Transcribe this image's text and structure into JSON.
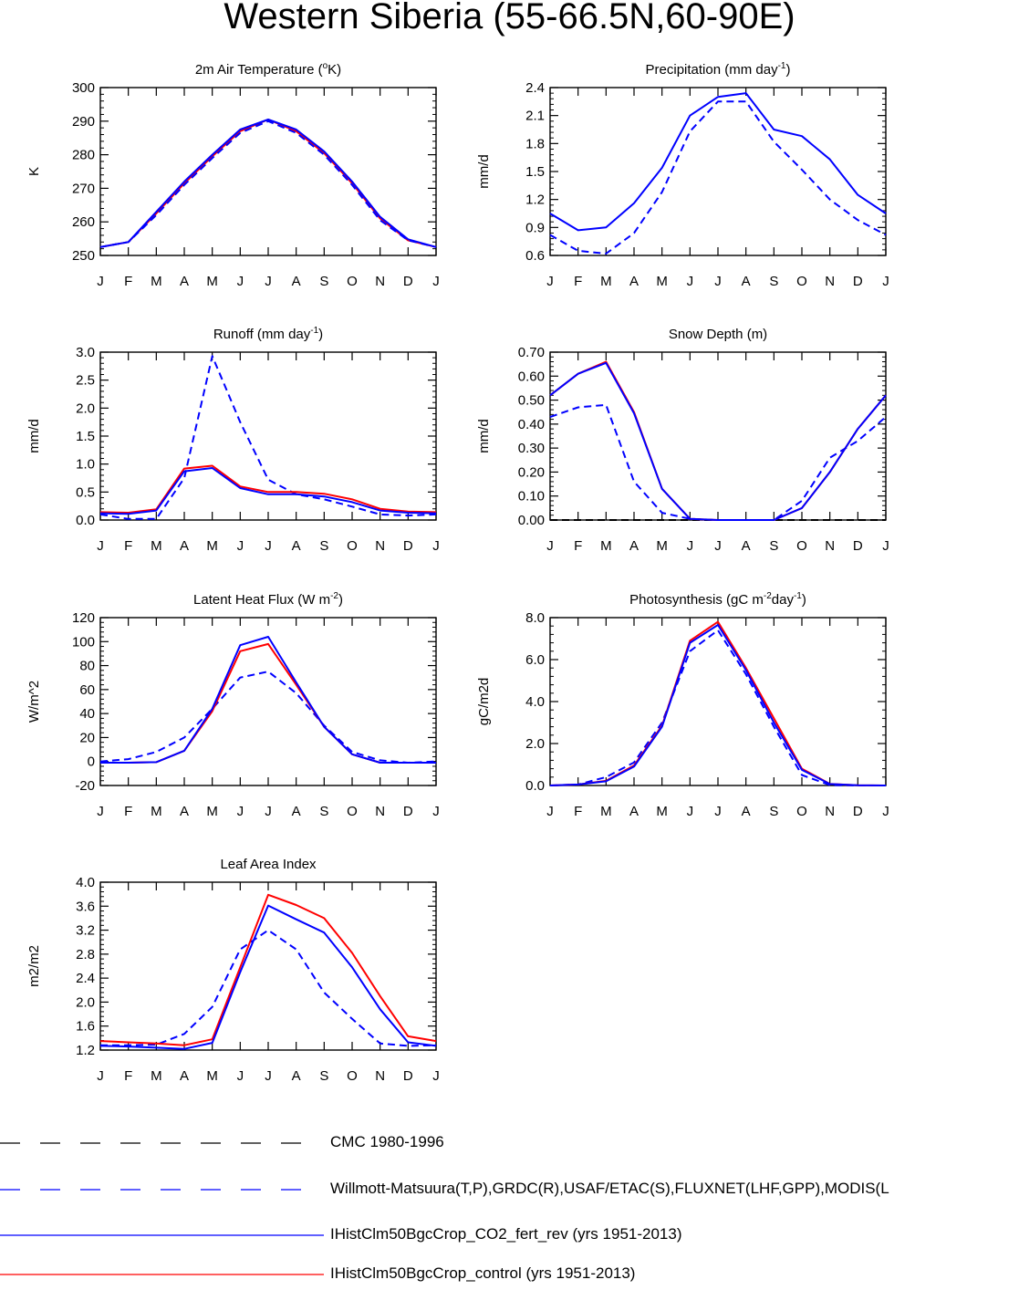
{
  "page": {
    "title": "Western Siberia (55-66.5N,60-90E)"
  },
  "legend": [
    {
      "label": "CMC 1980-1996",
      "color": "#000000",
      "dash": true
    },
    {
      "label": "Willmott-Matsuura(T,P),GRDC(R),USAF/ETAC(S),FLUXNET(LHF,GPP),MODIS(L",
      "color": "#0000ff",
      "dash": true
    },
    {
      "label": "IHistClm50BgcCrop_CO2_fert_rev (yrs 1951-2013)",
      "color": "#0000ff",
      "dash": false
    },
    {
      "label": "IHistClm50BgcCrop_control (yrs 1951-2013)",
      "color": "#ff0000",
      "dash": false
    }
  ],
  "colors": {
    "obs_dash": "#0000ff",
    "cmc_dash": "#000000",
    "co2_fert_rev": "#0000ff",
    "control": "#ff0000"
  },
  "chart_data": [
    {
      "type": "line",
      "title": "2m Air Temperature (",
      "title_sup": "o",
      "title_post": "K)",
      "ylabel": "K",
      "ylim": [
        250,
        300
      ],
      "yticks": [
        "250",
        "260",
        "270",
        "280",
        "290",
        "300"
      ],
      "x": [
        "J",
        "F",
        "M",
        "A",
        "M",
        "J",
        "J",
        "A",
        "S",
        "O",
        "N",
        "D",
        "J"
      ],
      "series": [
        {
          "key": "control",
          "values": [
            252.5,
            254,
            262.5,
            271.5,
            279.5,
            287,
            290.5,
            287,
            280.5,
            271.5,
            261,
            254.5,
            252.5
          ]
        },
        {
          "key": "obs",
          "values": [
            252.5,
            254,
            262,
            271,
            279,
            286.5,
            290,
            286.5,
            280,
            271,
            260.5,
            254.5,
            252.5
          ]
        },
        {
          "key": "co2_fert_rev",
          "values": [
            252.5,
            254,
            263,
            272,
            280,
            287.5,
            290.5,
            287.5,
            281,
            272,
            261.5,
            254.8,
            252.5
          ]
        }
      ]
    },
    {
      "type": "line",
      "title": "Precipitation (mm day",
      "title_sup": "-1",
      "title_post": ")",
      "ylabel": "mm/d",
      "ylim": [
        0.6,
        2.4
      ],
      "yticks": [
        "0.6",
        "0.9",
        "1.2",
        "1.5",
        "1.8",
        "2.1",
        "2.4"
      ],
      "x": [
        "J",
        "F",
        "M",
        "A",
        "M",
        "J",
        "J",
        "A",
        "S",
        "O",
        "N",
        "D",
        "J"
      ],
      "series": [
        {
          "key": "obs",
          "values": [
            0.82,
            0.65,
            0.62,
            0.84,
            1.28,
            1.93,
            2.25,
            2.25,
            1.82,
            1.52,
            1.2,
            0.98,
            0.82
          ]
        },
        {
          "key": "co2_fert_rev",
          "values": [
            1.05,
            0.87,
            0.9,
            1.16,
            1.54,
            2.1,
            2.3,
            2.34,
            1.95,
            1.88,
            1.63,
            1.25,
            1.05
          ]
        }
      ]
    },
    {
      "type": "line",
      "title": "Runoff (mm day",
      "title_sup": "-1",
      "title_post": ")",
      "ylabel": "mm/d",
      "ylim": [
        0.0,
        3.0
      ],
      "yticks": [
        "0.0",
        "0.5",
        "1.0",
        "1.5",
        "2.0",
        "2.5",
        "3.0"
      ],
      "x": [
        "J",
        "F",
        "M",
        "A",
        "M",
        "J",
        "J",
        "A",
        "S",
        "O",
        "N",
        "D",
        "J"
      ],
      "series": [
        {
          "key": "obs",
          "values": [
            0.1,
            0.02,
            0.02,
            0.75,
            2.93,
            1.75,
            0.72,
            0.46,
            0.37,
            0.24,
            0.1,
            0.08,
            0.1
          ]
        },
        {
          "key": "control",
          "values": [
            0.14,
            0.13,
            0.19,
            0.92,
            0.97,
            0.6,
            0.5,
            0.5,
            0.47,
            0.37,
            0.2,
            0.15,
            0.14
          ]
        },
        {
          "key": "co2_fert_rev",
          "values": [
            0.12,
            0.11,
            0.17,
            0.87,
            0.93,
            0.57,
            0.46,
            0.46,
            0.42,
            0.32,
            0.17,
            0.13,
            0.12
          ]
        }
      ]
    },
    {
      "type": "line",
      "title": "Snow Depth (m)",
      "title_sup": "",
      "title_post": "",
      "ylabel": "mm/d",
      "ylim": [
        0.0,
        0.7
      ],
      "yticks": [
        "0.00",
        "0.10",
        "0.20",
        "0.30",
        "0.40",
        "0.50",
        "0.60",
        "0.70"
      ],
      "x": [
        "J",
        "F",
        "M",
        "A",
        "M",
        "J",
        "J",
        "A",
        "S",
        "O",
        "N",
        "D",
        "J"
      ],
      "series": [
        {
          "key": "cmc",
          "values": [
            0,
            0,
            0,
            0,
            0,
            0,
            0,
            0,
            0,
            0,
            0,
            0,
            0
          ]
        },
        {
          "key": "obs",
          "values": [
            0.43,
            0.47,
            0.48,
            0.16,
            0.03,
            0.005,
            0.0,
            0.0,
            0.0,
            0.08,
            0.26,
            0.33,
            0.43
          ]
        },
        {
          "key": "control",
          "values": [
            0.52,
            0.61,
            0.66,
            0.45,
            0.13,
            0.005,
            0.0,
            0.0,
            0.0,
            0.05,
            0.2,
            0.38,
            0.52
          ]
        },
        {
          "key": "co2_fert_rev",
          "values": [
            0.52,
            0.61,
            0.655,
            0.445,
            0.13,
            0.005,
            0.0,
            0.0,
            0.0,
            0.05,
            0.2,
            0.38,
            0.52
          ]
        }
      ]
    },
    {
      "type": "line",
      "title": "Latent Heat Flux (W m",
      "title_sup": "-2",
      "title_post": ")",
      "ylabel": "W/m^2",
      "ylim": [
        -20,
        120
      ],
      "yticks": [
        "-20",
        "0",
        "20",
        "40",
        "60",
        "80",
        "100",
        "120"
      ],
      "x": [
        "J",
        "F",
        "M",
        "A",
        "M",
        "J",
        "J",
        "A",
        "S",
        "O",
        "N",
        "D",
        "J"
      ],
      "series": [
        {
          "key": "obs",
          "values": [
            0,
            2,
            8,
            20,
            44,
            70,
            75,
            57,
            30,
            8,
            1,
            -1,
            0
          ]
        },
        {
          "key": "control",
          "values": [
            -1,
            -1,
            -0.5,
            9,
            42,
            92,
            98,
            64,
            29,
            6,
            -1,
            -1,
            -1
          ]
        },
        {
          "key": "co2_fert_rev",
          "values": [
            -1,
            -1,
            -0.5,
            9,
            44,
            97,
            104,
            66,
            29,
            6,
            -1,
            -1,
            -1
          ]
        }
      ]
    },
    {
      "type": "line",
      "title": "Photosynthesis (gC m",
      "title_sup": "-2",
      "title_post": "day",
      "title_sup2": "-1",
      "title_post2": ")",
      "ylabel": "gC/m2d",
      "ylim": [
        0.0,
        8.0
      ],
      "yticks": [
        "0.0",
        "2.0",
        "4.0",
        "6.0",
        "8.0"
      ],
      "x": [
        "J",
        "F",
        "M",
        "A",
        "M",
        "J",
        "J",
        "A",
        "S",
        "O",
        "N",
        "D",
        "J"
      ],
      "series": [
        {
          "key": "obs",
          "values": [
            0,
            0.05,
            0.4,
            1.1,
            3.0,
            6.4,
            7.4,
            5.3,
            2.8,
            0.5,
            0.02,
            0,
            0
          ]
        },
        {
          "key": "control",
          "values": [
            0,
            0.05,
            0.22,
            0.95,
            2.85,
            6.9,
            7.8,
            5.6,
            3.2,
            0.8,
            0.08,
            0.01,
            0
          ]
        },
        {
          "key": "co2_fert_rev",
          "values": [
            0,
            0.05,
            0.2,
            0.9,
            2.8,
            6.8,
            7.65,
            5.5,
            3.0,
            0.75,
            0.07,
            0.01,
            0
          ]
        }
      ]
    },
    {
      "type": "line",
      "title": "Leaf Area Index",
      "title_sup": "",
      "title_post": "",
      "ylabel": "m2/m2",
      "ylim": [
        1.2,
        4.0
      ],
      "yticks": [
        "1.2",
        "1.6",
        "2.0",
        "2.4",
        "2.8",
        "3.2",
        "3.6",
        "4.0"
      ],
      "x": [
        "J",
        "F",
        "M",
        "A",
        "M",
        "J",
        "J",
        "A",
        "S",
        "O",
        "N",
        "D",
        "J"
      ],
      "series": [
        {
          "key": "obs",
          "values": [
            1.28,
            1.28,
            1.29,
            1.47,
            1.92,
            2.88,
            3.2,
            2.88,
            2.16,
            1.72,
            1.31,
            1.27,
            1.28
          ]
        },
        {
          "key": "control",
          "values": [
            1.35,
            1.33,
            1.31,
            1.28,
            1.38,
            2.58,
            3.79,
            3.62,
            3.4,
            2.82,
            2.1,
            1.43,
            1.35
          ]
        },
        {
          "key": "co2_fert_rev",
          "values": [
            1.27,
            1.26,
            1.24,
            1.22,
            1.32,
            2.5,
            3.61,
            3.38,
            3.16,
            2.58,
            1.88,
            1.33,
            1.27
          ]
        }
      ]
    }
  ]
}
